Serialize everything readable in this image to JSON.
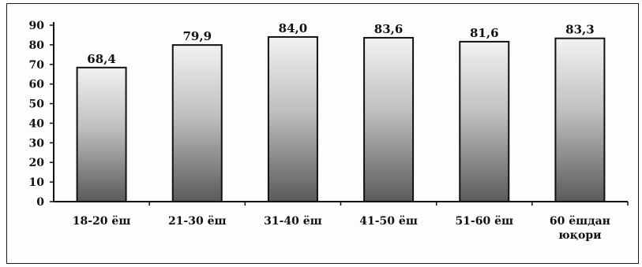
{
  "chart_data": {
    "type": "bar",
    "title": "",
    "xlabel": "",
    "ylabel": "",
    "categories": [
      "18-20 ёш",
      "21-30 ёш",
      "31-40 ёш",
      "41-50 ёш",
      "51-60 ёш",
      "60 ёшдан юқори"
    ],
    "category_lines": [
      [
        "18-20 ёш"
      ],
      [
        "21-30 ёш"
      ],
      [
        "31-40 ёш"
      ],
      [
        "41-50 ёш"
      ],
      [
        "51-60 ёш"
      ],
      [
        "60 ёшдан",
        "юқори"
      ]
    ],
    "values": [
      68.4,
      79.9,
      84.0,
      83.6,
      81.6,
      83.3
    ],
    "value_labels": [
      "68,4",
      "79,9",
      "84,0",
      "83,6",
      "81,6",
      "83,3"
    ],
    "ylim": [
      0,
      90
    ],
    "yticks": [
      0,
      10,
      20,
      30,
      40,
      50,
      60,
      70,
      80,
      90
    ],
    "grid": false,
    "legend": "none",
    "bar_gradient": [
      "#f2f2f2",
      "#bfbfbf",
      "#5a5a5a"
    ],
    "bar_outline": "#111111"
  }
}
